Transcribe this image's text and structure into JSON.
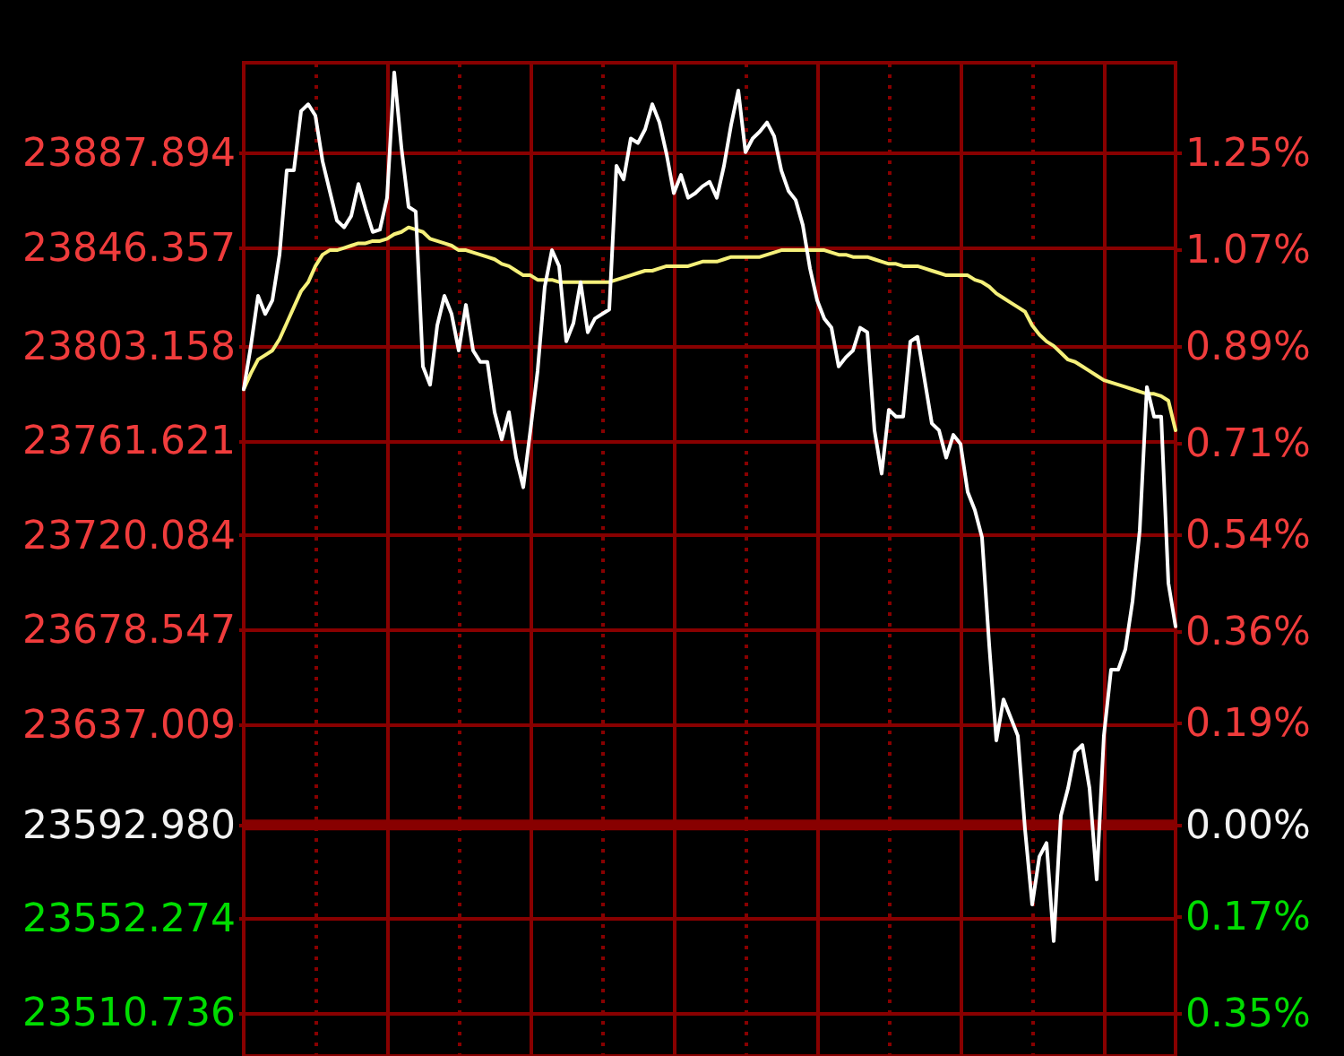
{
  "chart_data": {
    "type": "line",
    "categories": [
      null,
      null,
      null,
      null,
      null,
      null,
      null,
      null,
      null,
      null,
      null,
      null,
      null,
      null,
      null,
      null,
      null,
      null,
      null,
      null,
      null,
      null,
      null,
      null,
      null,
      null,
      null,
      null,
      null,
      null,
      null,
      null,
      null,
      null,
      null,
      null,
      null,
      null,
      null,
      null,
      null,
      null,
      null,
      null,
      null,
      null,
      null,
      null,
      null,
      null,
      null,
      null,
      null,
      null,
      null,
      null,
      null,
      null,
      null,
      null,
      null,
      null,
      null,
      null,
      null,
      null,
      null,
      null,
      null,
      null,
      null,
      null,
      null,
      null,
      null,
      null,
      null,
      null,
      null,
      null,
      null,
      null,
      null,
      null,
      null,
      null,
      null,
      null,
      null,
      null,
      null,
      null,
      null,
      null,
      null,
      null,
      null,
      null,
      null,
      null,
      null,
      null,
      null,
      null,
      null,
      null,
      null,
      null,
      null,
      null,
      null,
      null,
      null,
      null,
      null,
      null,
      null,
      null,
      null,
      null,
      null,
      null,
      null,
      null,
      null,
      null,
      null,
      null,
      null,
      null,
      null
    ],
    "series": [
      {
        "color": "#f5f07a",
        "values": [
          23784,
          23791,
          23797,
          23799,
          23801,
          23806,
          23813,
          23820,
          23827,
          23831,
          23838,
          23843,
          23845,
          23845,
          23846,
          23847,
          23848,
          23848,
          23849,
          23849,
          23850,
          23852,
          23853,
          23855,
          23854,
          23853,
          23850,
          23849,
          23848,
          23847,
          23845,
          23845,
          23844,
          23843,
          23842,
          23841,
          23839,
          23838,
          23836,
          23834,
          23834,
          23832,
          23832,
          23832,
          23831,
          23831,
          23831,
          23831,
          23831,
          23831,
          23831,
          23831,
          23832,
          23833,
          23834,
          23835,
          23836,
          23836,
          23837,
          23838,
          23838,
          23838,
          23838,
          23839,
          23840,
          23840,
          23840,
          23841,
          23842,
          23842,
          23842,
          23842,
          23842,
          23843,
          23844,
          23845,
          23845,
          23845,
          23845,
          23845,
          23845,
          23845,
          23844,
          23843,
          23843,
          23842,
          23842,
          23842,
          23841,
          23840,
          23839,
          23839,
          23838,
          23838,
          23838,
          23837,
          23836,
          23835,
          23834,
          23834,
          23834,
          23834,
          23832,
          23831,
          23829,
          23826,
          23824,
          23822,
          23820,
          23818,
          23812,
          23808,
          23805,
          23803,
          23800,
          23797,
          23796,
          23794,
          23792,
          23790,
          23788,
          23787,
          23786,
          23785,
          23784,
          23783,
          23782,
          23782,
          23781,
          23779,
          23766
        ]
      },
      {
        "color": "#ffffff",
        "values": [
          23784,
          23803,
          23825,
          23817,
          23823,
          23843,
          23880,
          23880,
          23906,
          23909,
          23904,
          23884,
          23871,
          23858,
          23855,
          23860,
          23874,
          23863,
          23853,
          23854,
          23868,
          23923,
          23890,
          23864,
          23862,
          23794,
          23786,
          23812,
          23825,
          23817,
          23801,
          23821,
          23801,
          23796,
          23796,
          23774,
          23762,
          23774,
          23754,
          23741,
          23766,
          23792,
          23829,
          23845,
          23838,
          23805,
          23813,
          23831,
          23809,
          23815,
          23817,
          23819,
          23882,
          23876,
          23894,
          23892,
          23898,
          23909,
          23901,
          23887,
          23870,
          23878,
          23868,
          23870,
          23873,
          23875,
          23868,
          23882,
          23900,
          23915,
          23888,
          23894,
          23897,
          23901,
          23895,
          23880,
          23871,
          23867,
          23856,
          23837,
          23823,
          23815,
          23811,
          23794,
          23798,
          23801,
          23811,
          23809,
          23766,
          23747,
          23775,
          23772,
          23772,
          23805,
          23807,
          23788,
          23769,
          23766,
          23754,
          23764,
          23760,
          23739,
          23731,
          23719,
          23672,
          23630,
          23648,
          23640,
          23632,
          23591,
          23558,
          23579,
          23585,
          23542,
          23597,
          23609,
          23625,
          23628,
          23609,
          23569,
          23632,
          23661,
          23661,
          23670,
          23691,
          23722,
          23785,
          23772,
          23772,
          23699,
          23680
        ]
      }
    ],
    "ylim": [
      23491.6,
      23927.2
    ],
    "yticks": [
      23887.894,
      23846.357,
      23803.158,
      23761.621,
      23720.084,
      23678.547,
      23637.009,
      {
        "value": 23592.98,
        "label": "23592.980"
      },
      23552.274,
      23510.736
    ],
    "y2lim": [
      -0.43,
      1.417
    ],
    "y2ticks": [
      {
        "value": 1.25,
        "label": "1.25%"
      },
      {
        "value": 1.07,
        "label": "1.07%"
      },
      {
        "value": 0.89,
        "label": "0.89%"
      },
      {
        "value": 0.71,
        "label": "0.71%"
      },
      {
        "value": 0.54,
        "label": "0.54%"
      },
      {
        "value": 0.36,
        "label": "0.36%"
      },
      {
        "value": 0.19,
        "label": "0.19%"
      },
      {
        "value": 0,
        "label": "0.00%"
      },
      {
        "value": -0.17,
        "label": "0.17%"
      },
      {
        "value": -0.35,
        "label": "0.35%"
      }
    ],
    "ref_lines": [
      {
        "axis": "y",
        "value": 23592.98,
        "color": "#880000"
      }
    ],
    "grid": true,
    "tick_labels": "y"
  }
}
